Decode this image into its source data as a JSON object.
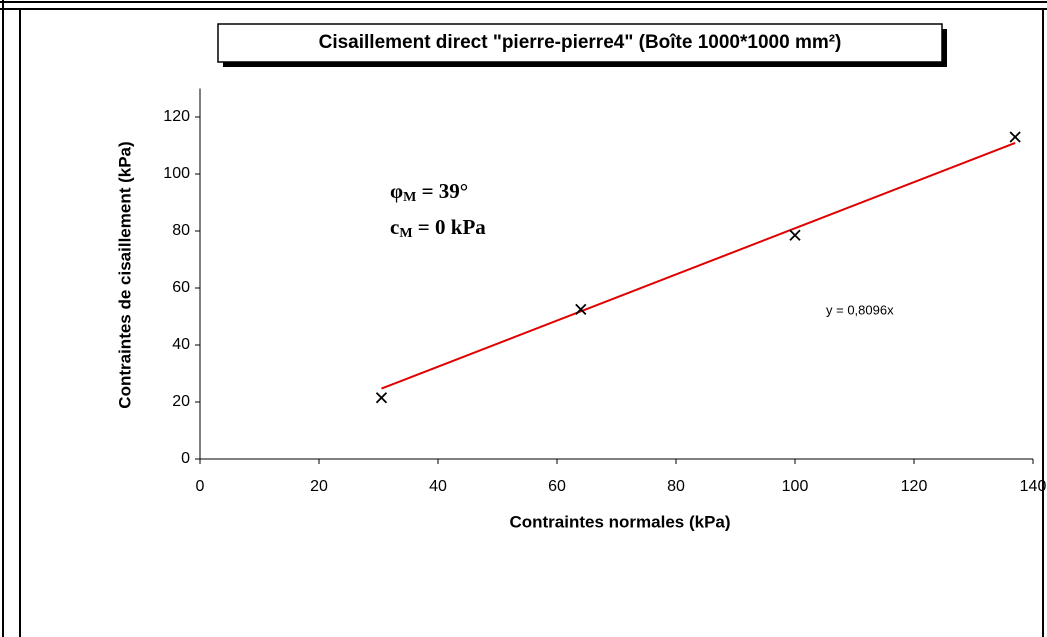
{
  "chart_data": {
    "type": "scatter",
    "title": "Cisaillement direct \"pierre-pierre4\" (Boîte 1000*1000 mm²)",
    "x_label": "Contraintes normales (kPa)",
    "y_label": "Contraintes de cisaillement (kPa)",
    "x": [
      30.5,
      64,
      100,
      137
    ],
    "values": [
      21.5,
      52.5,
      78.5,
      113
    ],
    "color": "#000000",
    "trendline": {
      "x": [
        30.5,
        137
      ],
      "values": [
        24.7,
        110.9
      ],
      "color": "#e00000",
      "label": "y = 0,8096x"
    },
    "annotations": [
      {
        "symbol": "φ",
        "sub": "M",
        "text": " = 39°"
      },
      {
        "symbol": "c",
        "sub": "M",
        "text": " = 0 kPa"
      }
    ],
    "xlim": [
      0,
      140
    ],
    "xticks": [
      0,
      20,
      40,
      60,
      80,
      100,
      120,
      140
    ],
    "ylim": [
      0,
      130
    ],
    "yticks": [
      0,
      20,
      40,
      60,
      80,
      100,
      120
    ]
  }
}
